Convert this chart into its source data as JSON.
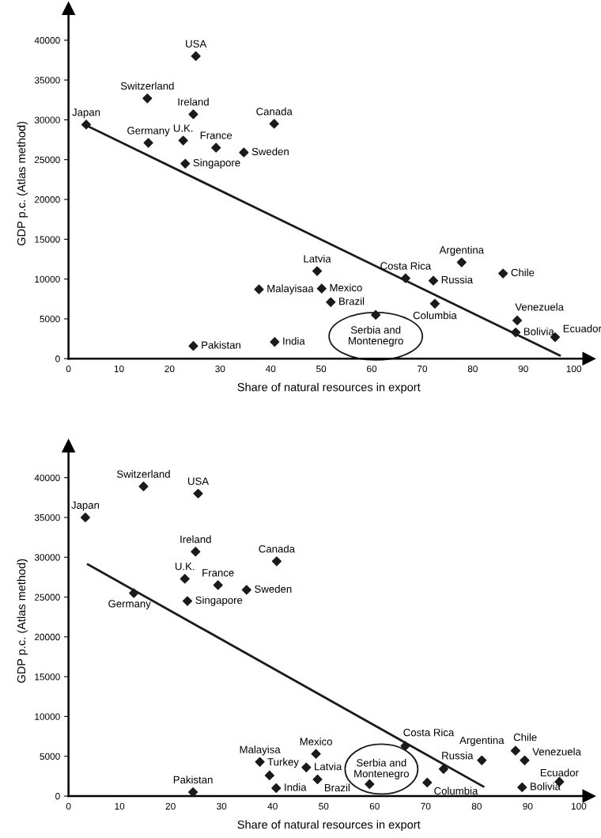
{
  "chart_data": [
    {
      "type": "scatter",
      "xlabel": "Share of natural resources in export",
      "ylabel": "GDP p.c. (Atlas method)",
      "xlim": [
        0,
        103
      ],
      "ylim": [
        0,
        44000
      ],
      "xticks": [
        0,
        10,
        20,
        30,
        40,
        50,
        60,
        70,
        80,
        90,
        100
      ],
      "yticks": [
        0,
        5000,
        10000,
        15000,
        20000,
        25000,
        30000,
        35000,
        40000
      ],
      "marker": "diamond",
      "grid": false,
      "series": [
        {
          "type": "scatter",
          "color": "#1a1a1a",
          "x": [
            3.5,
            15.6,
            25.2,
            24.7,
            40.7,
            15.8,
            22.7,
            29.2,
            34.7,
            23.1,
            49.2,
            37.7,
            50.1,
            51.9,
            60.8,
            24.7,
            40.8,
            66.7,
            72.2,
            77.8,
            86.0,
            72.5,
            88.8,
            88.5,
            96.3
          ],
          "values": [
            29400,
            32700,
            38000,
            30700,
            29500,
            27100,
            27400,
            26500,
            25900,
            24500,
            11000,
            8700,
            8800,
            7100,
            5500,
            1600,
            2100,
            10100,
            9800,
            12100,
            10700,
            6900,
            4800,
            3300,
            2700
          ]
        },
        {
          "type": "line",
          "color": "#1a1a1a",
          "marker": "none",
          "x": [
            3.5,
            97.2
          ],
          "values": [
            29300,
            400
          ]
        }
      ],
      "annotations": [
        {
          "text": "Japan",
          "x": 3.5,
          "y": 29400
        },
        {
          "text": "Switzerland",
          "x": 15.6,
          "y": 32700
        },
        {
          "text": "USA",
          "x": 25.2,
          "y": 38000
        },
        {
          "text": "Ireland",
          "x": 24.7,
          "y": 30700
        },
        {
          "text": "Canada",
          "x": 40.7,
          "y": 29500
        },
        {
          "text": "Germany",
          "x": 15.8,
          "y": 27100
        },
        {
          "text": "U.K.",
          "x": 22.7,
          "y": 27400
        },
        {
          "text": "France",
          "x": 29.2,
          "y": 26500
        },
        {
          "text": "Sweden",
          "x": 34.7,
          "y": 25900
        },
        {
          "text": "Singapore",
          "x": 23.1,
          "y": 24500
        },
        {
          "text": "Latvia",
          "x": 49.2,
          "y": 11000
        },
        {
          "text": "Malayisaa",
          "x": 37.7,
          "y": 8700
        },
        {
          "text": "Mexico",
          "x": 50.1,
          "y": 8800
        },
        {
          "text": "Brazil",
          "x": 51.9,
          "y": 7100
        },
        {
          "text": "Serbia and Montenegro",
          "x": 60.8,
          "y": 5500
        },
        {
          "text": "Pakistan",
          "x": 24.7,
          "y": 1600
        },
        {
          "text": "India",
          "x": 40.8,
          "y": 2100
        },
        {
          "text": "Costa Rica",
          "x": 66.7,
          "y": 10100
        },
        {
          "text": "Russia",
          "x": 72.2,
          "y": 9800
        },
        {
          "text": "Argentina",
          "x": 77.8,
          "y": 12100
        },
        {
          "text": "Chile",
          "x": 86.0,
          "y": 10700
        },
        {
          "text": "Columbia",
          "x": 72.5,
          "y": 6900
        },
        {
          "text": "Venezuela",
          "x": 88.8,
          "y": 4800
        },
        {
          "text": "Bolivia",
          "x": 88.5,
          "y": 3300
        },
        {
          "text": "Ecuador",
          "x": 96.3,
          "y": 2700
        }
      ]
    },
    {
      "type": "scatter",
      "xlabel": "Share of natural resources in export",
      "ylabel": "GDP p.c. (Atlas method)",
      "xlim": [
        0,
        102
      ],
      "ylim": [
        0,
        44000
      ],
      "xticks": [
        0,
        10,
        20,
        30,
        40,
        50,
        60,
        70,
        80,
        90,
        100
      ],
      "yticks": [
        0,
        5000,
        10000,
        15000,
        20000,
        25000,
        30000,
        35000,
        40000
      ],
      "marker": "diamond",
      "grid": false,
      "series": [
        {
          "type": "scatter",
          "color": "#1a1a1a",
          "x": [
            3.3,
            14.7,
            25.4,
            24.9,
            40.8,
            12.8,
            22.8,
            29.3,
            34.9,
            23.3,
            46.6,
            37.5,
            39.4,
            48.5,
            48.8,
            59.0,
            24.4,
            40.7,
            66.0,
            73.5,
            81.0,
            87.6,
            70.3,
            89.4,
            88.9,
            96.2
          ],
          "values": [
            35000,
            38900,
            38000,
            30700,
            29500,
            25500,
            27300,
            26500,
            25900,
            24500,
            3600,
            4300,
            2600,
            5300,
            2100,
            1500,
            500,
            1000,
            6300,
            3400,
            4500,
            5700,
            1700,
            4500,
            1100,
            1800
          ]
        },
        {
          "type": "line",
          "color": "#1a1a1a",
          "marker": "none",
          "x": [
            3.8,
            81.3
          ],
          "values": [
            29100,
            1200
          ]
        }
      ],
      "annotations": [
        {
          "text": "Japan",
          "x": 3.3,
          "y": 35000
        },
        {
          "text": "Switzerland",
          "x": 14.7,
          "y": 38900
        },
        {
          "text": "USA",
          "x": 25.4,
          "y": 38000
        },
        {
          "text": "Ireland",
          "x": 24.9,
          "y": 30700
        },
        {
          "text": "Canada",
          "x": 40.8,
          "y": 29500
        },
        {
          "text": "Germany",
          "x": 12.8,
          "y": 25500
        },
        {
          "text": "U.K.",
          "x": 22.8,
          "y": 27300
        },
        {
          "text": "France",
          "x": 29.3,
          "y": 26500
        },
        {
          "text": "Sweden",
          "x": 34.9,
          "y": 25900
        },
        {
          "text": "Singapore",
          "x": 23.3,
          "y": 24500
        },
        {
          "text": "Latvia",
          "x": 46.6,
          "y": 3600
        },
        {
          "text": "Malayisa",
          "x": 37.5,
          "y": 4300
        },
        {
          "text": "Turkey",
          "x": 39.4,
          "y": 2600
        },
        {
          "text": "Mexico",
          "x": 48.5,
          "y": 5300
        },
        {
          "text": "Brazil",
          "x": 48.8,
          "y": 2100
        },
        {
          "text": "Serbia and Montenegro",
          "x": 59.0,
          "y": 1500
        },
        {
          "text": "Pakistan",
          "x": 24.4,
          "y": 500
        },
        {
          "text": "India",
          "x": 40.7,
          "y": 1000
        },
        {
          "text": "Costa Rica",
          "x": 66.0,
          "y": 6300
        },
        {
          "text": "Russia",
          "x": 73.5,
          "y": 3400
        },
        {
          "text": "Argentina",
          "x": 81.0,
          "y": 4500
        },
        {
          "text": "Chile",
          "x": 87.6,
          "y": 5700
        },
        {
          "text": "Columbia",
          "x": 70.3,
          "y": 1700
        },
        {
          "text": "Venezuela",
          "x": 89.4,
          "y": 4500
        },
        {
          "text": "Bolivia",
          "x": 88.9,
          "y": 1100
        },
        {
          "text": "Ecuador",
          "x": 96.2,
          "y": 1800
        }
      ]
    }
  ]
}
